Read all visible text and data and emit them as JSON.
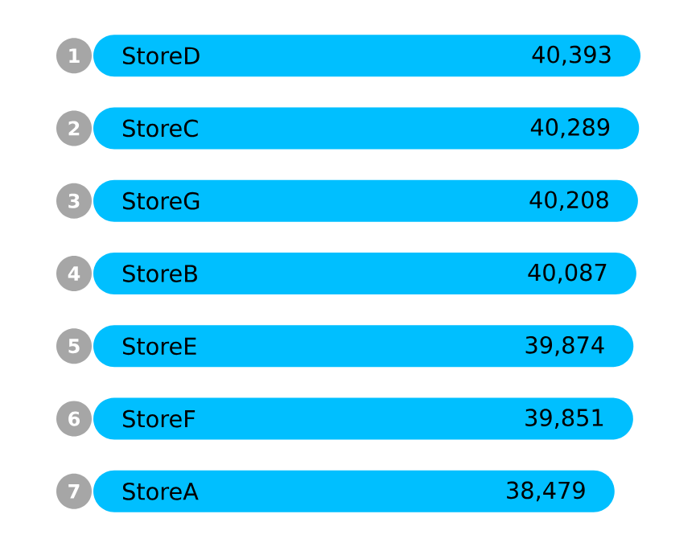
{
  "chart_data": {
    "type": "bar",
    "orientation": "horizontal",
    "categories": [
      "StoreD",
      "StoreC",
      "StoreG",
      "StoreB",
      "StoreE",
      "StoreF",
      "StoreA"
    ],
    "values": [
      40393,
      40289,
      40208,
      40087,
      39874,
      39851,
      38479
    ],
    "value_labels": [
      "40,393",
      "40,289",
      "40,208",
      "40,087",
      "39,874",
      "39,851",
      "38,479"
    ],
    "color": "#00bfff",
    "annotations": [
      "1",
      "2",
      "3",
      "4",
      "5",
      "6",
      "7"
    ]
  }
}
